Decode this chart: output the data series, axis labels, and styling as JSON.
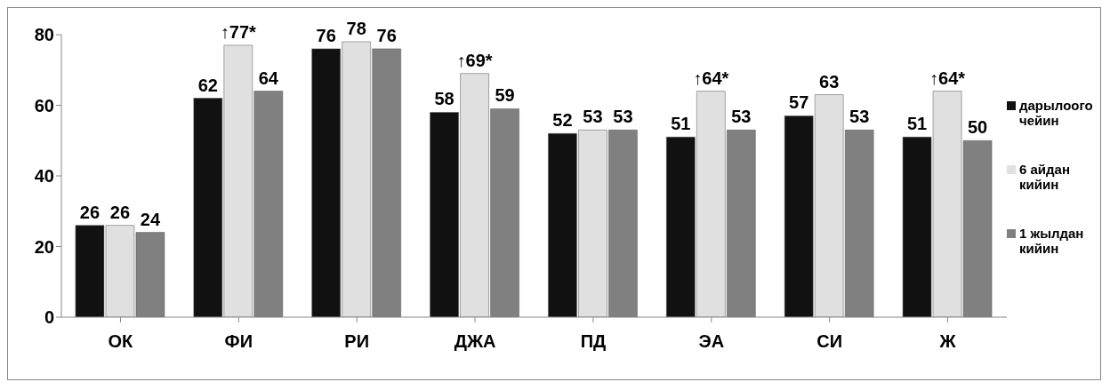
{
  "chart_data": {
    "type": "bar",
    "categories": [
      "ОК",
      "ФИ",
      "РИ",
      "ДЖА",
      "ПД",
      "ЭА",
      "СИ",
      "Ж"
    ],
    "series": [
      {
        "name": "дарылоого чейин",
        "color": "#111111",
        "values": [
          26,
          62,
          76,
          58,
          52,
          51,
          57,
          51
        ],
        "value_labels": [
          "26",
          "62",
          "76",
          "58",
          "52",
          "51",
          "57",
          "51"
        ]
      },
      {
        "name": "6 айдан кийин",
        "color": "#e0e0e0",
        "values": [
          26,
          77,
          78,
          69,
          53,
          64,
          63,
          64
        ],
        "value_labels": [
          "26",
          "↑77*",
          "78",
          "↑69*",
          "53",
          "↑64*",
          "63",
          "↑64*"
        ]
      },
      {
        "name": "1 жылдан кийин",
        "color": "#808080",
        "values": [
          24,
          64,
          76,
          59,
          53,
          53,
          53,
          50
        ],
        "value_labels": [
          "24",
          "64",
          "76",
          "59",
          "53",
          "53",
          "53",
          "50"
        ]
      }
    ],
    "ylim": [
      0,
      80
    ],
    "yticks": [
      0,
      20,
      40,
      60,
      80
    ],
    "grid": false,
    "legend": "right"
  }
}
